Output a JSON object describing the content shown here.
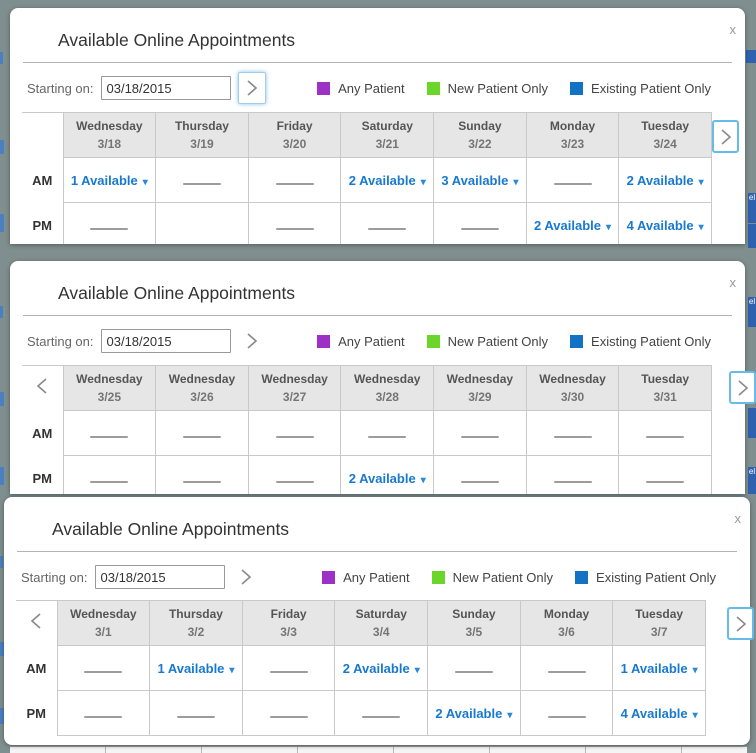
{
  "ui": {
    "caret": "▾",
    "fragment_text": "el",
    "colors": {
      "background": "#7f8e8e",
      "link_blue": "#1879d0",
      "nav_border_blue": "#66bbe8",
      "fragment_blue": "#2e62ae",
      "any_patient": "#9d30c5",
      "new_patient_only": "#6cd52a",
      "existing_patient_only": "#1273c4"
    }
  },
  "panels": [
    {
      "title": "Available Online Appointments",
      "close_label": "x",
      "controls": {
        "starting_on_label": "Starting on:",
        "date_value": "03/18/2015"
      },
      "legend": [
        {
          "label": "Any Patient",
          "color": "#9d30c5"
        },
        {
          "label": "New Patient Only",
          "color": "#6cd52a"
        },
        {
          "label": "Existing Patient Only",
          "color": "#1273c4"
        }
      ],
      "days": [
        {
          "name": "Wednesday",
          "date": "3/18"
        },
        {
          "name": "Thursday",
          "date": "3/19"
        },
        {
          "name": "Friday",
          "date": "3/20"
        },
        {
          "name": "Saturday",
          "date": "3/21"
        },
        {
          "name": "Sunday",
          "date": "3/22"
        },
        {
          "name": "Monday",
          "date": "3/23"
        },
        {
          "name": "Tuesday",
          "date": "3/24"
        }
      ],
      "rows": [
        {
          "label": "AM",
          "cells": [
            "1 Available",
            "dash",
            "dash",
            "2 Available",
            "3 Available",
            "dash",
            "2 Available"
          ]
        },
        {
          "label": "PM",
          "cells": [
            "dash",
            "",
            "dash",
            "dash",
            "dash",
            "2 Available",
            "4 Available"
          ]
        }
      ]
    },
    {
      "title": "Available Online Appointments",
      "close_label": "x",
      "controls": {
        "starting_on_label": "Starting on:",
        "date_value": "03/18/2015"
      },
      "legend": [
        {
          "label": "Any Patient",
          "color": "#9d30c5"
        },
        {
          "label": "New Patient Only",
          "color": "#6cd52a"
        },
        {
          "label": "Existing Patient Only",
          "color": "#1273c4"
        }
      ],
      "days": [
        {
          "name": "Wednesday",
          "date": "3/25"
        },
        {
          "name": "Wednesday",
          "date": "3/26"
        },
        {
          "name": "Wednesday",
          "date": "3/27"
        },
        {
          "name": "Wednesday",
          "date": "3/28"
        },
        {
          "name": "Wednesday",
          "date": "3/29"
        },
        {
          "name": "Wednesday",
          "date": "3/30"
        },
        {
          "name": "Tuesday",
          "date": "3/31"
        }
      ],
      "rows": [
        {
          "label": "AM",
          "cells": [
            "dash",
            "dash",
            "dash",
            "dash",
            "dash",
            "dash",
            "dash"
          ]
        },
        {
          "label": "PM",
          "cells": [
            "dash",
            "dash",
            "dash",
            "2 Available",
            "dash",
            "dash",
            "dash"
          ]
        }
      ]
    },
    {
      "title": "Available Online Appointments",
      "close_label": "x",
      "controls": {
        "starting_on_label": "Starting on:",
        "date_value": "03/18/2015"
      },
      "legend": [
        {
          "label": "Any Patient",
          "color": "#9d30c5"
        },
        {
          "label": "New Patient Only",
          "color": "#6cd52a"
        },
        {
          "label": "Existing Patient Only",
          "color": "#1273c4"
        }
      ],
      "days": [
        {
          "name": "Wednesday",
          "date": "3/1"
        },
        {
          "name": "Thursday",
          "date": "3/2"
        },
        {
          "name": "Friday",
          "date": "3/3"
        },
        {
          "name": "Saturday",
          "date": "3/4"
        },
        {
          "name": "Sunday",
          "date": "3/5"
        },
        {
          "name": "Monday",
          "date": "3/6"
        },
        {
          "name": "Tuesday",
          "date": "3/7"
        }
      ],
      "rows": [
        {
          "label": "AM",
          "cells": [
            "dash",
            "1 Available",
            "dash",
            "2 Available",
            "dash",
            "dash",
            "1 Available"
          ]
        },
        {
          "label": "PM",
          "cells": [
            "dash",
            "dash",
            "dash",
            "dash",
            "2 Available",
            "dash",
            "4 Available"
          ]
        }
      ]
    }
  ]
}
